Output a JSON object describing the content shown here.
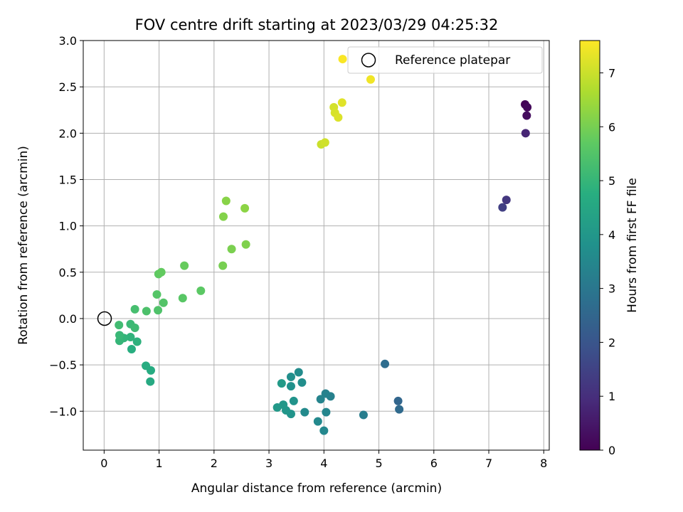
{
  "chart_data": {
    "type": "scatter",
    "title": "FOV centre drift starting at 2023/03/29 04:25:32",
    "xlabel": "Angular distance from reference (arcmin)",
    "ylabel": "Rotation from reference (arcmin)",
    "xlim": [
      -0.38,
      8.1
    ],
    "ylim": [
      -1.42,
      3.0
    ],
    "x_ticks": [
      0,
      1,
      2,
      3,
      4,
      5,
      6,
      7,
      8
    ],
    "x_tick_labels": [
      "0",
      "1",
      "2",
      "3",
      "4",
      "5",
      "6",
      "7",
      "8"
    ],
    "y_ticks": [
      -1.0,
      -0.5,
      0.0,
      0.5,
      1.0,
      1.5,
      2.0,
      2.5,
      3.0
    ],
    "y_tick_labels": [
      "−1.0",
      "−0.5",
      "0.0",
      "0.5",
      "1.0",
      "1.5",
      "2.0",
      "2.5",
      "3.0"
    ],
    "grid": true,
    "legend": {
      "position": "top-right",
      "entries": [
        "Reference platepar"
      ]
    },
    "reference_point": {
      "label": "Reference platepar",
      "x": 0,
      "y": 0
    },
    "colorbar": {
      "label": "Hours from first FF file",
      "colormap": "viridis",
      "range": [
        0,
        7.6
      ],
      "ticks": [
        0,
        1,
        2,
        3,
        4,
        5,
        6,
        7
      ],
      "tick_labels": [
        "0",
        "1",
        "2",
        "3",
        "4",
        "5",
        "6",
        "7"
      ]
    },
    "points": [
      {
        "x": 7.66,
        "y": 2.31,
        "h": 0.05
      },
      {
        "x": 7.7,
        "y": 2.28,
        "h": 0.15
      },
      {
        "x": 7.69,
        "y": 2.19,
        "h": 0.25
      },
      {
        "x": 7.67,
        "y": 2.0,
        "h": 0.8
      },
      {
        "x": 7.32,
        "y": 1.28,
        "h": 1.2
      },
      {
        "x": 7.25,
        "y": 1.2,
        "h": 1.4
      },
      {
        "x": 5.35,
        "y": -0.89,
        "h": 2.5
      },
      {
        "x": 5.37,
        "y": -0.98,
        "h": 2.6
      },
      {
        "x": 5.11,
        "y": -0.49,
        "h": 2.7
      },
      {
        "x": 4.72,
        "y": -1.04,
        "h": 3.2
      },
      {
        "x": 4.12,
        "y": -0.84,
        "h": 3.3
      },
      {
        "x": 4.03,
        "y": -0.81,
        "h": 3.35
      },
      {
        "x": 3.94,
        "y": -0.87,
        "h": 3.4
      },
      {
        "x": 4.04,
        "y": -1.01,
        "h": 3.45
      },
      {
        "x": 4.0,
        "y": -1.21,
        "h": 3.5
      },
      {
        "x": 3.89,
        "y": -1.11,
        "h": 3.55
      },
      {
        "x": 3.65,
        "y": -1.01,
        "h": 3.6
      },
      {
        "x": 3.54,
        "y": -0.58,
        "h": 3.65
      },
      {
        "x": 3.6,
        "y": -0.69,
        "h": 3.7
      },
      {
        "x": 3.4,
        "y": -0.63,
        "h": 3.75
      },
      {
        "x": 3.4,
        "y": -0.73,
        "h": 3.8
      },
      {
        "x": 3.45,
        "y": -0.89,
        "h": 3.85
      },
      {
        "x": 3.4,
        "y": -1.03,
        "h": 3.9
      },
      {
        "x": 3.31,
        "y": -0.99,
        "h": 3.95
      },
      {
        "x": 3.26,
        "y": -0.93,
        "h": 4.0
      },
      {
        "x": 3.15,
        "y": -0.96,
        "h": 4.05
      },
      {
        "x": 3.23,
        "y": -0.7,
        "h": 4.1
      },
      {
        "x": 0.84,
        "y": -0.68,
        "h": 4.6
      },
      {
        "x": 0.85,
        "y": -0.56,
        "h": 4.65
      },
      {
        "x": 0.76,
        "y": -0.51,
        "h": 4.7
      },
      {
        "x": 0.5,
        "y": -0.33,
        "h": 4.75
      },
      {
        "x": 0.6,
        "y": -0.25,
        "h": 4.85
      },
      {
        "x": 0.48,
        "y": -0.2,
        "h": 4.9
      },
      {
        "x": 0.36,
        "y": -0.21,
        "h": 4.95
      },
      {
        "x": 0.28,
        "y": -0.24,
        "h": 5.0
      },
      {
        "x": 0.28,
        "y": -0.18,
        "h": 5.05
      },
      {
        "x": 0.48,
        "y": -0.06,
        "h": 5.1
      },
      {
        "x": 0.56,
        "y": -0.1,
        "h": 5.15
      },
      {
        "x": 0.27,
        "y": -0.07,
        "h": 5.2
      },
      {
        "x": 0.56,
        "y": 0.1,
        "h": 5.3
      },
      {
        "x": 0.77,
        "y": 0.08,
        "h": 5.4
      },
      {
        "x": 0.98,
        "y": 0.09,
        "h": 5.45
      },
      {
        "x": 1.08,
        "y": 0.17,
        "h": 5.5
      },
      {
        "x": 0.96,
        "y": 0.26,
        "h": 5.55
      },
      {
        "x": 1.43,
        "y": 0.22,
        "h": 5.6
      },
      {
        "x": 1.76,
        "y": 0.3,
        "h": 5.65
      },
      {
        "x": 0.99,
        "y": 0.48,
        "h": 5.7
      },
      {
        "x": 1.04,
        "y": 0.5,
        "h": 5.75
      },
      {
        "x": 1.46,
        "y": 0.57,
        "h": 5.8
      },
      {
        "x": 2.16,
        "y": 0.57,
        "h": 6.0
      },
      {
        "x": 2.32,
        "y": 0.75,
        "h": 6.05
      },
      {
        "x": 2.58,
        "y": 0.8,
        "h": 6.1
      },
      {
        "x": 2.17,
        "y": 1.1,
        "h": 6.15
      },
      {
        "x": 2.22,
        "y": 1.27,
        "h": 6.2
      },
      {
        "x": 2.56,
        "y": 1.19,
        "h": 6.25
      },
      {
        "x": 3.95,
        "y": 1.88,
        "h": 7.0
      },
      {
        "x": 4.02,
        "y": 1.9,
        "h": 7.05
      },
      {
        "x": 4.18,
        "y": 2.28,
        "h": 7.1
      },
      {
        "x": 4.2,
        "y": 2.22,
        "h": 7.15
      },
      {
        "x": 4.26,
        "y": 2.17,
        "h": 7.2
      },
      {
        "x": 4.33,
        "y": 2.33,
        "h": 7.25
      },
      {
        "x": 4.85,
        "y": 2.58,
        "h": 7.45
      },
      {
        "x": 4.34,
        "y": 2.8,
        "h": 7.55
      }
    ]
  }
}
